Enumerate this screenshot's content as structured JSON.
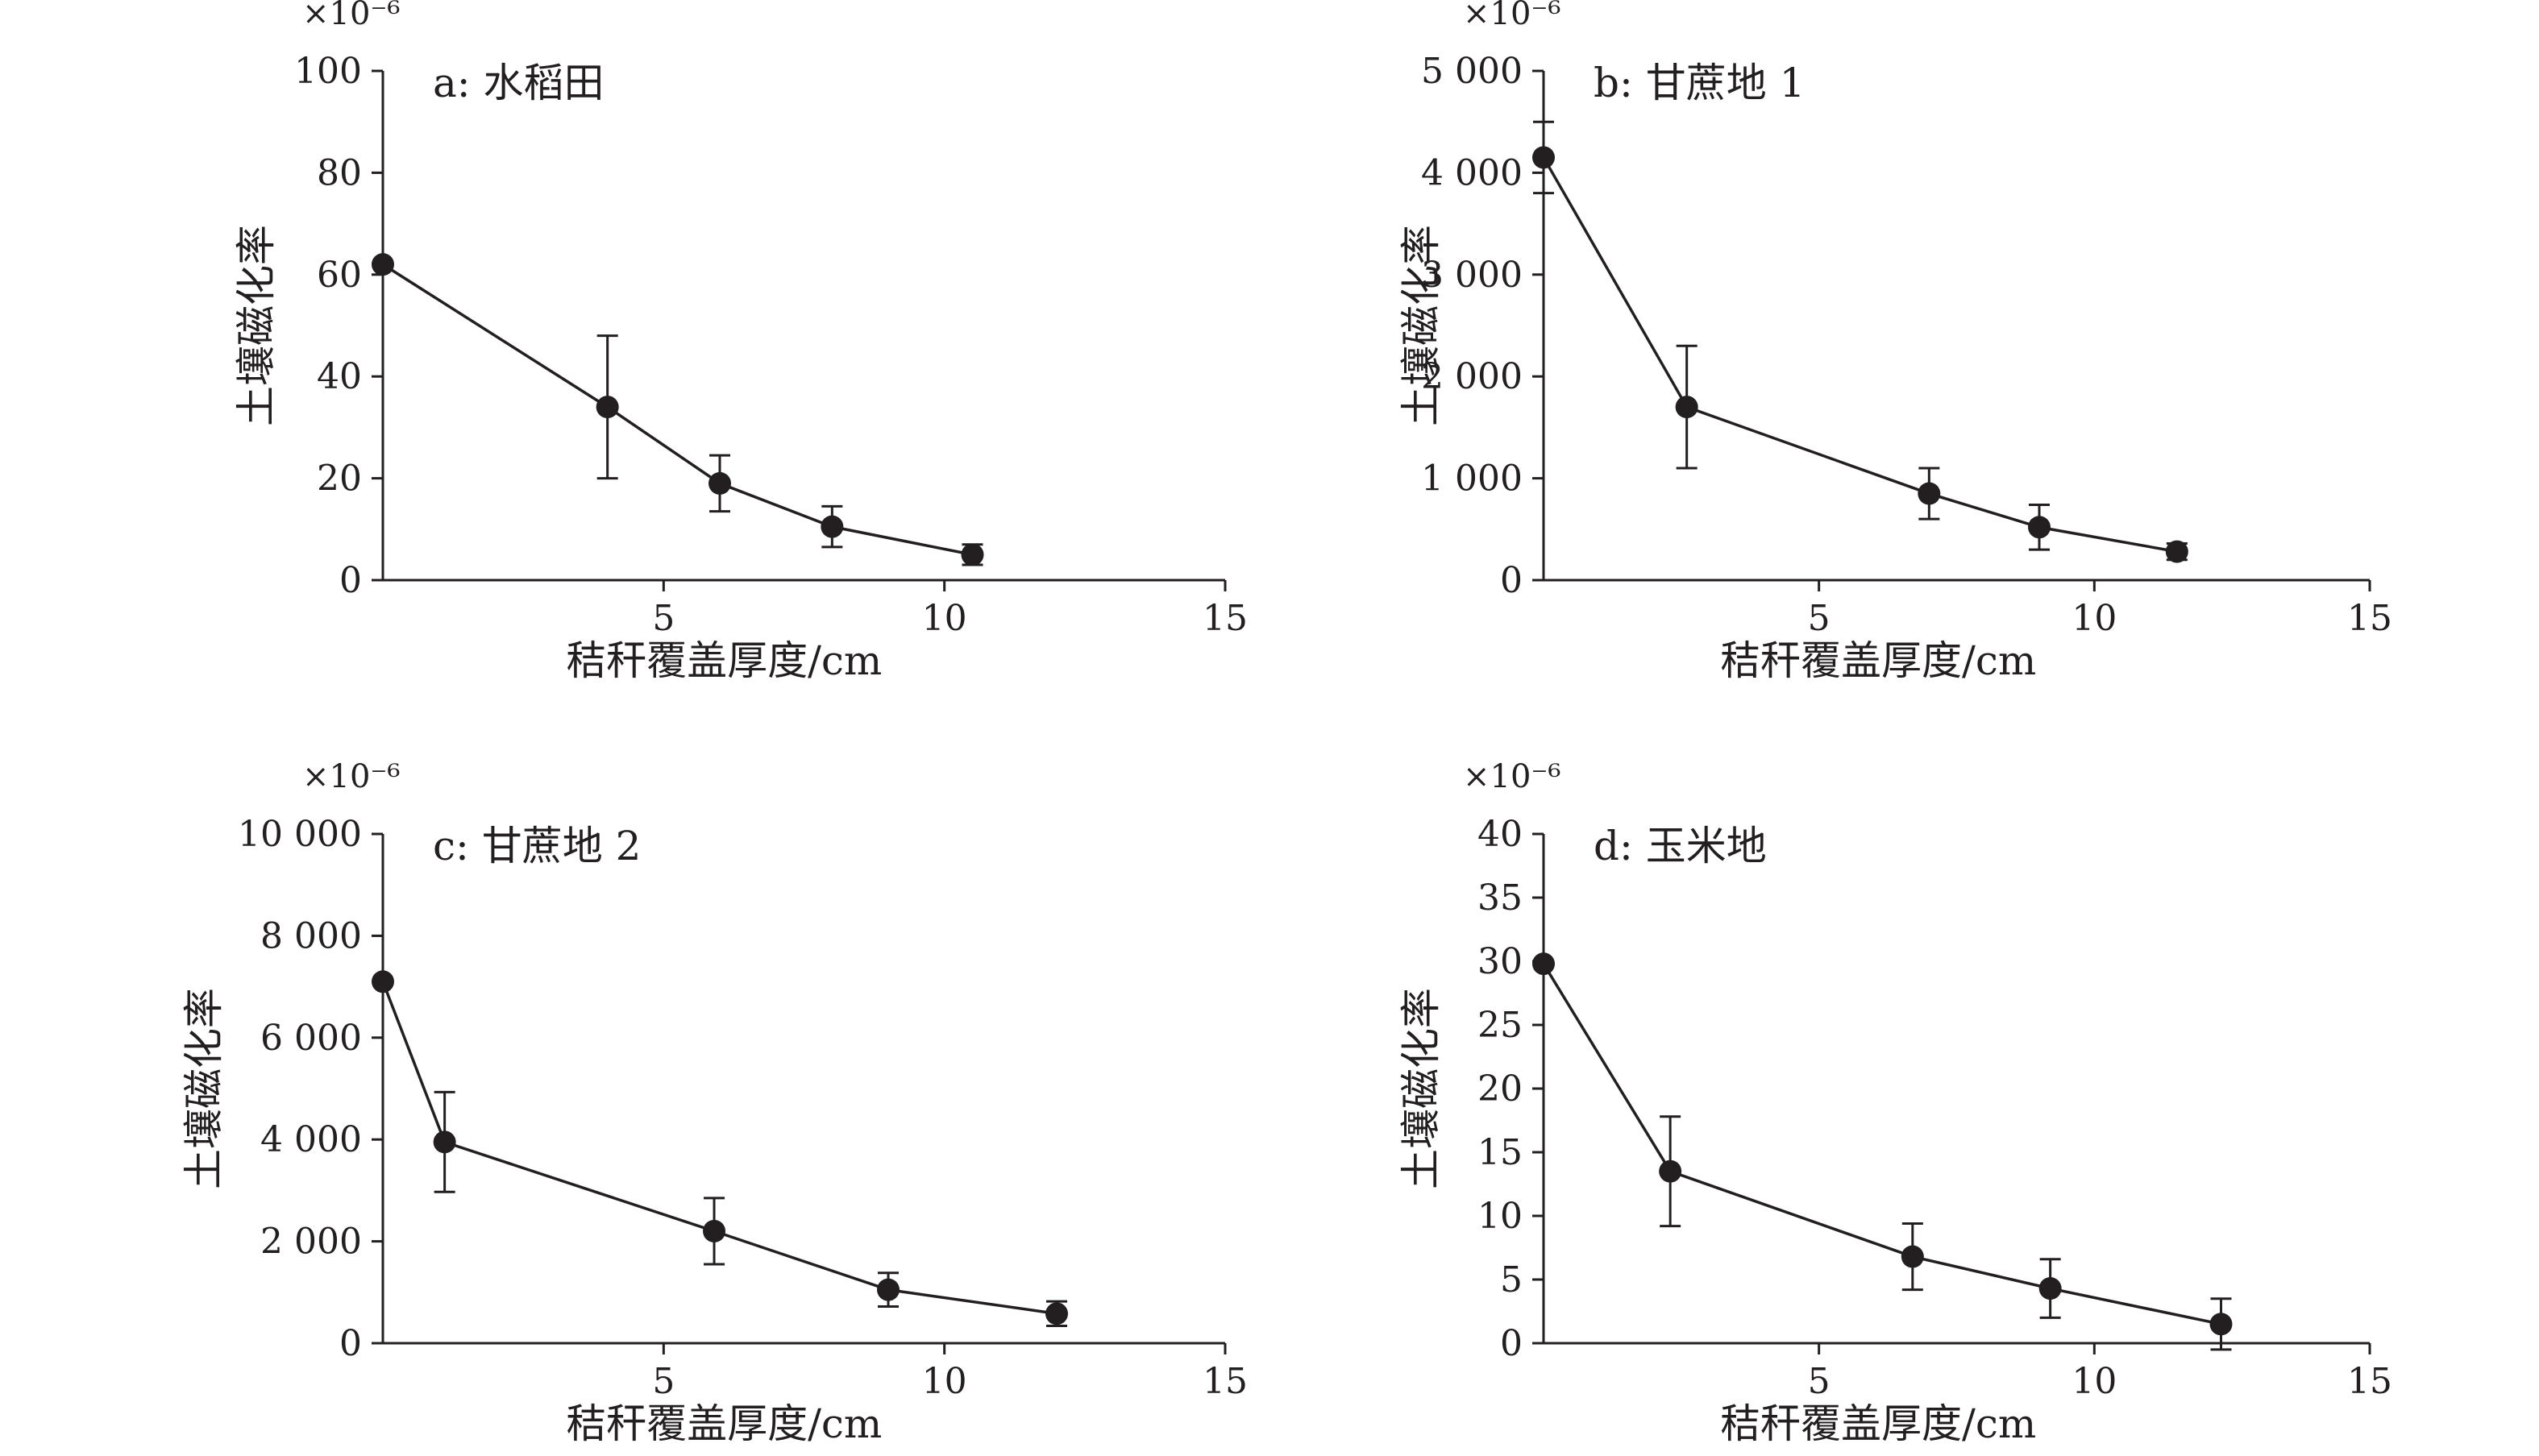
{
  "chart_data": [
    {
      "type": "line",
      "panel_label": "a: 水稻田",
      "scale_label": "×10⁻⁶",
      "xlabel": "秸秆覆盖厚度/cm",
      "ylabel": "土壤磁化率",
      "xlim": [
        0,
        15
      ],
      "ylim": [
        0,
        100
      ],
      "xticks": [
        5,
        10,
        15
      ],
      "xtick_labels": [
        "5",
        "10",
        "15"
      ],
      "yticks": [
        0,
        20,
        40,
        60,
        80,
        100
      ],
      "ytick_labels": [
        "0",
        "20",
        "40",
        "60",
        "80",
        "100"
      ],
      "grid": false,
      "series": [
        {
          "x": [
            0,
            4,
            6,
            8,
            10.5
          ],
          "y": [
            62,
            34,
            19,
            10.5,
            5
          ],
          "error": [
            0,
            14,
            5.5,
            4,
            2
          ]
        }
      ]
    },
    {
      "type": "line",
      "panel_label": "b: 甘蔗地 1",
      "scale_label": "×10⁻⁶",
      "xlabel": "秸秆覆盖厚度/cm",
      "ylabel": "土壤磁化率",
      "xlim": [
        0,
        15
      ],
      "ylim": [
        0,
        5000
      ],
      "xticks": [
        5,
        10,
        15
      ],
      "xtick_labels": [
        "5",
        "10",
        "15"
      ],
      "yticks": [
        0,
        1000,
        2000,
        3000,
        4000,
        5000
      ],
      "ytick_labels": [
        "0",
        "1 000",
        "2 000",
        "3 000",
        "4 000",
        "5 000"
      ],
      "grid": false,
      "series": [
        {
          "x": [
            0,
            2.6,
            7,
            9,
            11.5
          ],
          "y": [
            4150,
            1700,
            850,
            520,
            280
          ],
          "error": [
            350,
            600,
            250,
            220,
            80
          ]
        }
      ]
    },
    {
      "type": "line",
      "panel_label": "c: 甘蔗地 2",
      "scale_label": "×10⁻⁶",
      "xlabel": "秸秆覆盖厚度/cm",
      "ylabel": "土壤磁化率",
      "xlim": [
        0,
        15
      ],
      "ylim": [
        0,
        10000
      ],
      "xticks": [
        5,
        10,
        15
      ],
      "xtick_labels": [
        "5",
        "10",
        "15"
      ],
      "yticks": [
        0,
        2000,
        4000,
        6000,
        8000,
        10000
      ],
      "ytick_labels": [
        "0",
        "2 000",
        "4 000",
        "6 000",
        "8 000",
        "10 000"
      ],
      "grid": false,
      "series": [
        {
          "x": [
            0,
            1.1,
            5.9,
            9,
            12
          ],
          "y": [
            7100,
            3950,
            2200,
            1050,
            580
          ],
          "error": [
            0,
            980,
            650,
            330,
            240
          ]
        }
      ]
    },
    {
      "type": "line",
      "panel_label": "d: 玉米地",
      "scale_label": "×10⁻⁶",
      "xlabel": "秸秆覆盖厚度/cm",
      "ylabel": "土壤磁化率",
      "xlim": [
        0,
        15
      ],
      "ylim": [
        0,
        40
      ],
      "xticks": [
        5,
        10,
        15
      ],
      "xtick_labels": [
        "5",
        "10",
        "15"
      ],
      "yticks": [
        0,
        5,
        10,
        15,
        20,
        25,
        30,
        35,
        40
      ],
      "ytick_labels": [
        "0",
        "5",
        "10",
        "15",
        "20",
        "25",
        "30",
        "35",
        "40"
      ],
      "grid": false,
      "series": [
        {
          "x": [
            0,
            2.3,
            6.7,
            9.2,
            12.3
          ],
          "y": [
            29.8,
            13.5,
            6.8,
            4.3,
            1.5
          ],
          "error": [
            0,
            4.3,
            2.6,
            2.3,
            2
          ]
        }
      ]
    }
  ]
}
